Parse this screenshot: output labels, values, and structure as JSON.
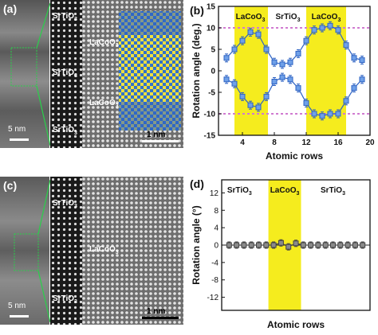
{
  "figure": {
    "panel_a": {
      "label": "(a)",
      "scale_main": "5 nm",
      "scale_zoom": "1 nm",
      "layers": [
        "SrTiO",
        "SrTiO",
        "SrTiO"
      ],
      "layer_sub": "3",
      "laco_labels": [
        "LaCoO",
        "LaCoO"
      ],
      "laco_sub": "3"
    },
    "panel_c": {
      "label": "(c)",
      "scale_main": "5 nm",
      "scale_zoom": "1 nm",
      "layers": [
        "SrTiO",
        "SrTiO"
      ],
      "layer_sub": "3",
      "laco_label": "LaCoO",
      "laco_sub": "3"
    },
    "colors": {
      "band": "#f5ec1e",
      "series": "#2e63c4",
      "series_fill": "#6fa0e8",
      "gray_series": "#6b6b6b",
      "dashed": "#d07ad0"
    }
  },
  "chart_data": [
    {
      "type": "scatter",
      "panel_label": "(b)",
      "xlabel": "Atomic rows",
      "ylabel": "Rotation angle (deg.)",
      "xlim": [
        1,
        20
      ],
      "ylim": [
        -15,
        15
      ],
      "xticks": [
        4,
        8,
        12,
        16,
        20
      ],
      "yticks": [
        -15,
        -10,
        -5,
        0,
        5,
        10,
        15
      ],
      "bands": [
        [
          3,
          7.2
        ],
        [
          12,
          17
        ]
      ],
      "band_labels": [
        {
          "text": "LaCoO",
          "sub": "3",
          "x": 5
        },
        {
          "text": "SrTiO",
          "sub": "3",
          "x": 9.7
        },
        {
          "text": "LaCoO",
          "sub": "3",
          "x": 14.5
        }
      ],
      "reference_lines": [
        10,
        -10
      ],
      "x": [
        2,
        3,
        4,
        5,
        6,
        7,
        8,
        9,
        10,
        11,
        12,
        13,
        14,
        15,
        16,
        17,
        18,
        19
      ],
      "series": [
        {
          "values": [
            3,
            5,
            7,
            9,
            8.5,
            5,
            2,
            1.5,
            2,
            4,
            7,
            9.5,
            10,
            10.5,
            9.5,
            6,
            3,
            2.5
          ]
        },
        {
          "values": [
            -2,
            -3,
            -6,
            -8,
            -8.5,
            -6,
            -2.5,
            -1.5,
            -2,
            -4,
            -7.5,
            -10,
            -10.5,
            -10,
            -10,
            -7,
            -4,
            -2
          ]
        }
      ]
    },
    {
      "type": "scatter",
      "panel_label": "(d)",
      "xlabel": "Atomic rows",
      "ylabel": "Rotation angle (°)",
      "xlim": [
        0,
        20
      ],
      "ylim": [
        -15,
        15
      ],
      "yticks": [
        -12,
        -8,
        -4,
        0,
        4,
        8,
        12
      ],
      "bands": [
        [
          6.3,
          10.7
        ]
      ],
      "band_labels": [
        {
          "text": "SrTiO",
          "sub": "3",
          "x": 2.4
        },
        {
          "text": "LaCoO",
          "sub": "3",
          "x": 8.5
        },
        {
          "text": "SrTiO",
          "sub": "3",
          "x": 15
        }
      ],
      "x": [
        1,
        2,
        3,
        4,
        5,
        6,
        7,
        8,
        9,
        10,
        11,
        12,
        13,
        14,
        15,
        16,
        17,
        18,
        19
      ],
      "series": [
        {
          "values": [
            0,
            0,
            0,
            0,
            0,
            0,
            0,
            0.5,
            -0.4,
            0.4,
            0,
            0,
            0,
            0,
            0,
            0,
            0,
            0,
            0
          ]
        }
      ]
    }
  ]
}
